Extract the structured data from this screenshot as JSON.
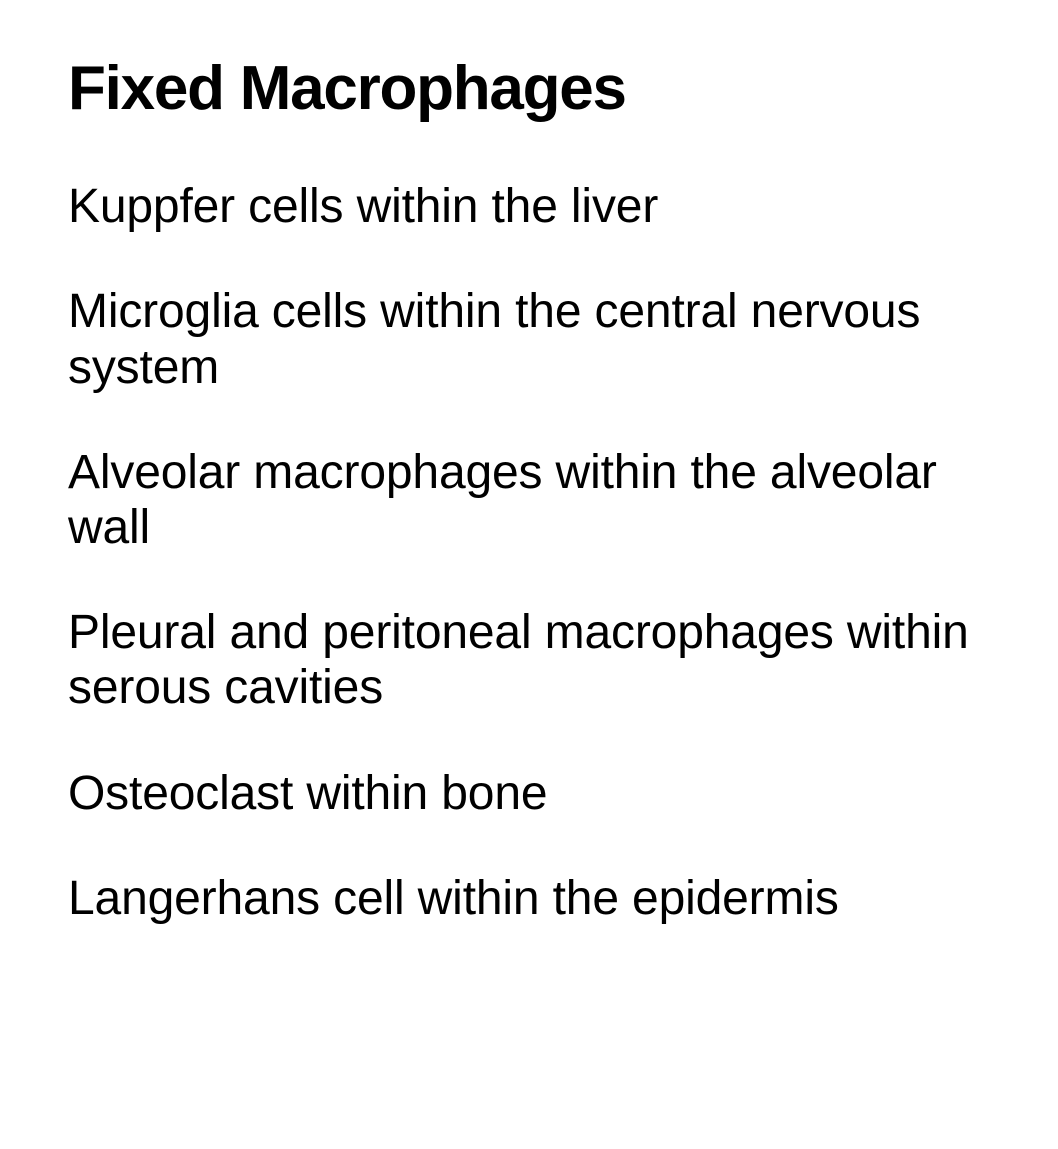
{
  "document": {
    "title": "Fixed Macrophages",
    "title_fontsize": 62,
    "title_fontweight": 700,
    "body_fontsize": 48,
    "body_fontweight": 400,
    "text_color": "#000000",
    "background_color": "#ffffff",
    "items": [
      "Kuppfer cells within the liver",
      "Microglia cells within the central nervous system",
      "Alveolar macrophages within the alveolar wall",
      "Pleural and peritoneal macrophages within serous cavities",
      "Osteoclast within bone",
      "Langerhans cell within the epidermis"
    ]
  }
}
